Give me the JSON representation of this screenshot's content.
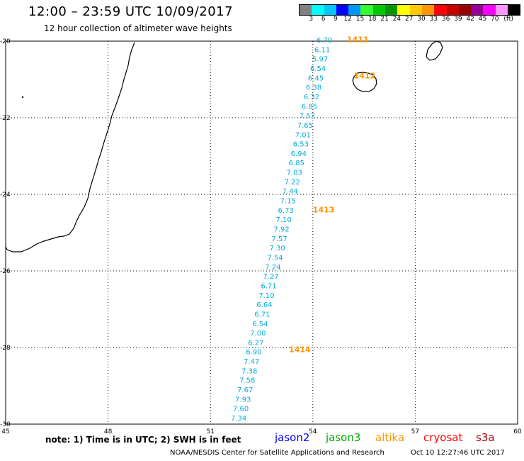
{
  "header": {
    "title": "12:00 – 23:59 UTC 10/09/2017",
    "subtitle": "12 hour collection of altimeter wave heights"
  },
  "colorbar": {
    "colors": [
      "#808080",
      "#00ffff",
      "#00c8ff",
      "#0000ff",
      "#0096ff",
      "#32ff32",
      "#00c800",
      "#009600",
      "#ffff00",
      "#ffc800",
      "#ff9600",
      "#ff0000",
      "#c80000",
      "#960000",
      "#960096",
      "#ff00ff",
      "#ff96ff",
      "#000000"
    ],
    "labels": [
      "3",
      "6",
      "9",
      "12",
      "15",
      "18",
      "21",
      "24",
      "27",
      "30",
      "33",
      "36",
      "39",
      "42",
      "45",
      "70",
      "(ft)"
    ]
  },
  "axes": {
    "x_ticks": [
      "45",
      "48",
      "51",
      "54",
      "57",
      "60"
    ],
    "y_ticks": [
      "-20",
      "-22",
      "-24",
      "-26",
      "-28",
      "-30"
    ]
  },
  "passes": {
    "color": "#ff9600",
    "labels": [
      {
        "text": "1411",
        "lon": 55.0,
        "lat": -19.95
      },
      {
        "text": "1412",
        "lon": 55.2,
        "lat": -20.9
      },
      {
        "text": "1413",
        "lon": 54.0,
        "lat": -24.4
      },
      {
        "text": "1414",
        "lon": 53.3,
        "lat": -28.05
      }
    ]
  },
  "wave_heights": {
    "color": "#00aadd",
    "values": [
      "6.70",
      "6.11",
      "5.97",
      "6.54",
      "6.45",
      "6.38",
      "6.32",
      "6.85",
      "7.52",
      "7.65",
      "7.01",
      "6.53",
      "6.94",
      "6.85",
      "7.03",
      "7.22",
      "7.44",
      "7.15",
      "6.73",
      "7.10",
      "7.92",
      "7.57",
      "7.30",
      "7.54",
      "7.24",
      "7.27",
      "6.71",
      "7.10",
      "6.64",
      "6.71",
      "6.54",
      "7.00",
      "6.27",
      "6.90",
      "7.47",
      "7.38",
      "7.58",
      "7.67",
      "7.93",
      "7.60",
      "7.34"
    ]
  },
  "legend": {
    "note": "note: 1) Time is in UTC; 2) SWH is in feet",
    "satellites": [
      {
        "name": "jason2",
        "color": "#0000ff"
      },
      {
        "name": "jason3",
        "color": "#00aa00"
      },
      {
        "name": "altika",
        "color": "#ff9600"
      },
      {
        "name": "cryosat",
        "color": "#ff0000"
      },
      {
        "name": "s3a",
        "color": "#aa0000"
      }
    ]
  },
  "footer": {
    "credit": "NOAA/NESDIS Center for Satellite Applications and Research",
    "timestamp": "Oct 10 12:27:46 UTC 2017"
  }
}
